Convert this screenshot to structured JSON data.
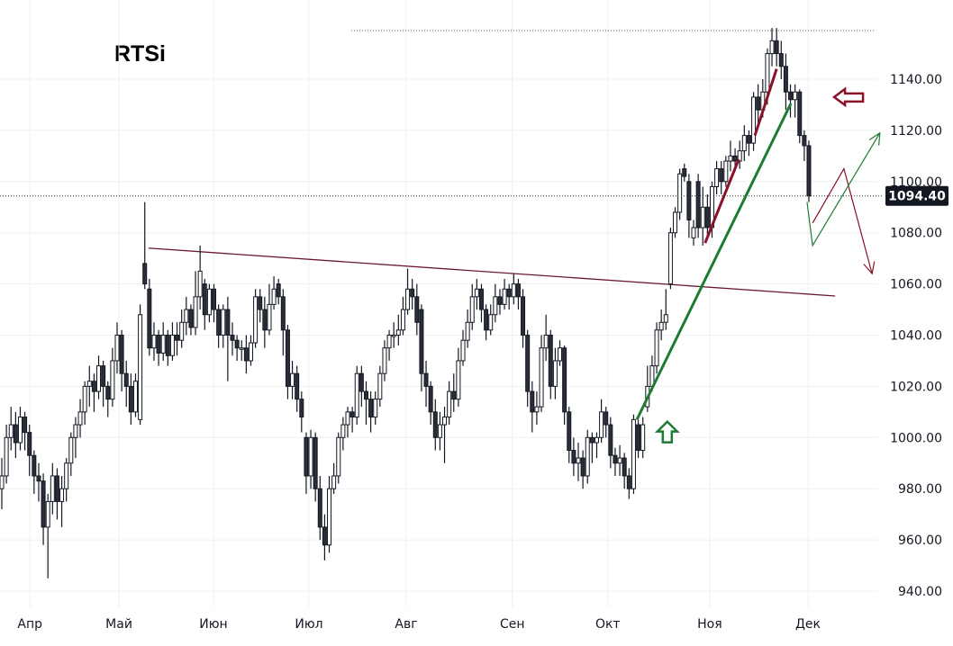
{
  "chart_data": {
    "type": "candlestick",
    "title": "RTSi",
    "ylim": [
      932,
      1162
    ],
    "yticks": [
      940,
      960,
      980,
      1000,
      1020,
      1040,
      1060,
      1080,
      1100,
      1120,
      1140
    ],
    "ytick_labels": [
      "940.00",
      "960.00",
      "980.00",
      "1000.00",
      "1020.00",
      "1040.00",
      "1060.00",
      "1080.00",
      "1100.00",
      "1120.00",
      "1140.00"
    ],
    "xticks": [
      {
        "label": "Апр",
        "index": 6.1
      },
      {
        "label": "Май",
        "index": 25.4
      },
      {
        "label": "Июн",
        "index": 45.9
      },
      {
        "label": "Июл",
        "index": 66.6
      },
      {
        "label": "Авг",
        "index": 87.7
      },
      {
        "label": "Сен",
        "index": 110.7
      },
      {
        "label": "Окт",
        "index": 131.4
      },
      {
        "label": "Ноя",
        "index": 153.5
      },
      {
        "label": "Дек",
        "index": 174.8
      }
    ],
    "grid": true,
    "last_price": 1094.4,
    "last_price_label": "1094.40",
    "colors": {
      "up_body": "#ffffff",
      "down_body": "#2a2e39",
      "wick": "#131722",
      "resistance": "#6b1a2e",
      "trend_green": "#1e7b34",
      "trend_red": "#8b1028",
      "grid": "#eef0f3"
    },
    "ohlc": [
      [
        980,
        992,
        972,
        985
      ],
      [
        985,
        1005,
        982,
        1000
      ],
      [
        1000,
        1012,
        995,
        1005
      ],
      [
        1005,
        1010,
        992,
        998
      ],
      [
        998,
        1012,
        995,
        1008
      ],
      [
        1008,
        1010,
        995,
        1002
      ],
      [
        1002,
        1005,
        985,
        993
      ],
      [
        993,
        995,
        978,
        985
      ],
      [
        985,
        990,
        975,
        983
      ],
      [
        983,
        986,
        958,
        965
      ],
      [
        965,
        978,
        945,
        975
      ],
      [
        975,
        990,
        970,
        985
      ],
      [
        985,
        988,
        968,
        975
      ],
      [
        975,
        985,
        965,
        980
      ],
      [
        980,
        992,
        975,
        990
      ],
      [
        990,
        1002,
        985,
        1000
      ],
      [
        1000,
        1008,
        992,
        1005
      ],
      [
        1005,
        1015,
        1000,
        1010
      ],
      [
        1010,
        1022,
        1005,
        1020
      ],
      [
        1020,
        1028,
        1012,
        1022
      ],
      [
        1022,
        1025,
        1010,
        1018
      ],
      [
        1018,
        1032,
        1015,
        1028
      ],
      [
        1028,
        1030,
        1012,
        1020
      ],
      [
        1020,
        1022,
        1008,
        1015
      ],
      [
        1015,
        1035,
        1012,
        1030
      ],
      [
        1030,
        1045,
        1025,
        1040
      ],
      [
        1040,
        1042,
        1018,
        1025
      ],
      [
        1025,
        1030,
        1012,
        1020
      ],
      [
        1020,
        1025,
        1005,
        1010
      ],
      [
        1010,
        1025,
        1008,
        1022
      ],
      [
        1007,
        1052,
        1005,
        1048
      ],
      [
        1068,
        1092,
        1058,
        1060
      ],
      [
        1058,
        1062,
        1032,
        1035
      ],
      [
        1035,
        1045,
        1030,
        1040
      ],
      [
        1040,
        1042,
        1028,
        1033
      ],
      [
        1033,
        1045,
        1030,
        1040
      ],
      [
        1040,
        1042,
        1028,
        1032
      ],
      [
        1032,
        1045,
        1030,
        1040
      ],
      [
        1040,
        1045,
        1032,
        1038
      ],
      [
        1038,
        1050,
        1035,
        1045
      ],
      [
        1045,
        1055,
        1040,
        1050
      ],
      [
        1050,
        1052,
        1040,
        1043
      ],
      [
        1043,
        1065,
        1040,
        1055
      ],
      [
        1055,
        1075,
        1050,
        1065
      ],
      [
        1060,
        1062,
        1042,
        1048
      ],
      [
        1048,
        1060,
        1045,
        1058
      ],
      [
        1058,
        1060,
        1045,
        1050
      ],
      [
        1050,
        1052,
        1035,
        1040
      ],
      [
        1040,
        1052,
        1035,
        1050
      ],
      [
        1050,
        1055,
        1022,
        1040
      ],
      [
        1040,
        1045,
        1032,
        1038
      ],
      [
        1038,
        1040,
        1030,
        1035
      ],
      [
        1035,
        1038,
        1030,
        1035
      ],
      [
        1035,
        1040,
        1025,
        1030
      ],
      [
        1030,
        1040,
        1028,
        1037
      ],
      [
        1037,
        1058,
        1035,
        1055
      ],
      [
        1055,
        1058,
        1045,
        1050
      ],
      [
        1050,
        1055,
        1035,
        1042
      ],
      [
        1042,
        1060,
        1040,
        1052
      ],
      [
        1052,
        1063,
        1050,
        1058
      ],
      [
        1060,
        1062,
        1052,
        1055
      ],
      [
        1055,
        1058,
        1032,
        1042
      ],
      [
        1042,
        1044,
        1015,
        1020
      ],
      [
        1020,
        1030,
        1015,
        1025
      ],
      [
        1025,
        1028,
        1010,
        1015
      ],
      [
        1015,
        1018,
        1002,
        1008
      ],
      [
        1000,
        1002,
        978,
        985
      ],
      [
        985,
        1003,
        980,
        1000
      ],
      [
        1000,
        1002,
        975,
        980
      ],
      [
        980,
        985,
        960,
        965
      ],
      [
        965,
        970,
        952,
        958
      ],
      [
        958,
        985,
        955,
        980
      ],
      [
        980,
        990,
        978,
        985
      ],
      [
        985,
        1002,
        982,
        1000
      ],
      [
        1000,
        1008,
        995,
        1005
      ],
      [
        1005,
        1012,
        1000,
        1010
      ],
      [
        1010,
        1012,
        1002,
        1008
      ],
      [
        1008,
        1028,
        1005,
        1025
      ],
      [
        1025,
        1028,
        1012,
        1018
      ],
      [
        1018,
        1022,
        1005,
        1015
      ],
      [
        1015,
        1018,
        1002,
        1008
      ],
      [
        1008,
        1018,
        1005,
        1015
      ],
      [
        1015,
        1028,
        1012,
        1025
      ],
      [
        1025,
        1038,
        1022,
        1035
      ],
      [
        1035,
        1042,
        1030,
        1040
      ],
      [
        1040,
        1045,
        1035,
        1040
      ],
      [
        1040,
        1048,
        1036,
        1042
      ],
      [
        1042,
        1055,
        1040,
        1050
      ],
      [
        1050,
        1066,
        1048,
        1058
      ],
      [
        1058,
        1062,
        1050,
        1055
      ],
      [
        1055,
        1060,
        1040,
        1045
      ],
      [
        1050,
        1052,
        1018,
        1025
      ],
      [
        1025,
        1030,
        1012,
        1020
      ],
      [
        1020,
        1022,
        1005,
        1010
      ],
      [
        1010,
        1015,
        995,
        1000
      ],
      [
        1000,
        1010,
        995,
        1005
      ],
      [
        1005,
        1012,
        990,
        1008
      ],
      [
        1008,
        1022,
        1005,
        1018
      ],
      [
        1018,
        1025,
        1010,
        1015
      ],
      [
        1015,
        1035,
        1012,
        1030
      ],
      [
        1030,
        1042,
        1028,
        1038
      ],
      [
        1038,
        1050,
        1035,
        1045
      ],
      [
        1045,
        1060,
        1042,
        1055
      ],
      [
        1055,
        1062,
        1050,
        1058
      ],
      [
        1058,
        1060,
        1045,
        1050
      ],
      [
        1050,
        1052,
        1038,
        1042
      ],
      [
        1042,
        1052,
        1040,
        1048
      ],
      [
        1048,
        1060,
        1045,
        1055
      ],
      [
        1055,
        1058,
        1048,
        1052
      ],
      [
        1052,
        1062,
        1050,
        1058
      ],
      [
        1058,
        1060,
        1050,
        1055
      ],
      [
        1055,
        1064,
        1052,
        1060
      ],
      [
        1060,
        1062,
        1050,
        1055
      ],
      [
        1055,
        1058,
        1035,
        1040
      ],
      [
        1040,
        1042,
        1012,
        1018
      ],
      [
        1018,
        1022,
        1002,
        1010
      ],
      [
        1010,
        1018,
        1005,
        1012
      ],
      [
        1012,
        1040,
        1010,
        1035
      ],
      [
        1035,
        1048,
        1030,
        1040
      ],
      [
        1040,
        1042,
        1015,
        1020
      ],
      [
        1020,
        1035,
        1015,
        1030
      ],
      [
        1030,
        1038,
        1028,
        1035
      ],
      [
        1035,
        1036,
        1005,
        1010
      ],
      [
        1010,
        1012,
        990,
        995
      ],
      [
        995,
        1000,
        985,
        990
      ],
      [
        990,
        998,
        983,
        992
      ],
      [
        992,
        995,
        980,
        985
      ],
      [
        985,
        1003,
        982,
        1000
      ],
      [
        1000,
        1002,
        990,
        998
      ],
      [
        998,
        1002,
        992,
        1000
      ],
      [
        1000,
        1015,
        998,
        1010
      ],
      [
        1010,
        1012,
        1000,
        1005
      ],
      [
        1005,
        1008,
        988,
        993
      ],
      [
        993,
        996,
        985,
        990
      ],
      [
        990,
        997,
        985,
        992
      ],
      [
        992,
        994,
        980,
        985
      ],
      [
        985,
        988,
        976,
        980
      ],
      [
        980,
        1009,
        978,
        1007
      ],
      [
        1005,
        1007,
        992,
        995
      ],
      [
        995,
        1008,
        992,
        1005
      ],
      [
        1012,
        1028,
        1010,
        1020
      ],
      [
        1020,
        1032,
        1018,
        1028
      ],
      [
        1028,
        1045,
        1025,
        1042
      ],
      [
        1042,
        1050,
        1038,
        1045
      ],
      [
        1045,
        1058,
        1042,
        1048
      ],
      [
        1060,
        1082,
        1058,
        1080
      ],
      [
        1080,
        1090,
        1078,
        1088
      ],
      [
        1088,
        1105,
        1085,
        1103
      ],
      [
        1105,
        1107,
        1100,
        1102
      ],
      [
        1100,
        1103,
        1078,
        1085
      ],
      [
        1078,
        1085,
        1075,
        1082
      ],
      [
        1100,
        1103,
        1078,
        1082
      ],
      [
        1082,
        1098,
        1075,
        1090
      ],
      [
        1090,
        1095,
        1078,
        1082
      ],
      [
        1082,
        1100,
        1078,
        1098
      ],
      [
        1098,
        1108,
        1095,
        1105
      ],
      [
        1105,
        1108,
        1095,
        1100
      ],
      [
        1100,
        1110,
        1098,
        1108
      ],
      [
        1108,
        1116,
        1104,
        1110
      ],
      [
        1110,
        1113,
        1104,
        1108
      ],
      [
        1108,
        1116,
        1105,
        1112
      ],
      [
        1112,
        1122,
        1108,
        1118
      ],
      [
        1118,
        1120,
        1110,
        1115
      ],
      [
        1115,
        1135,
        1112,
        1133
      ],
      [
        1133,
        1138,
        1122,
        1128
      ],
      [
        1128,
        1140,
        1125,
        1135
      ],
      [
        1135,
        1152,
        1130,
        1150
      ],
      [
        1150,
        1160,
        1145,
        1155
      ],
      [
        1155,
        1160,
        1145,
        1150
      ],
      [
        1150,
        1155,
        1140,
        1145
      ],
      [
        1145,
        1150,
        1128,
        1135
      ],
      [
        1135,
        1138,
        1125,
        1132
      ],
      [
        1132,
        1138,
        1125,
        1135
      ],
      [
        1135,
        1136,
        1115,
        1118
      ],
      [
        1118,
        1120,
        1108,
        1114
      ],
      [
        1114,
        1116,
        1092,
        1094.4
      ]
    ],
    "annotations": {
      "resistance_line": [
        [
          31.8,
          1074
        ],
        [
          180.7,
          1055.3
        ]
      ],
      "high_dotted_line": [
        [
          75.8,
          1159
        ],
        [
          189.5,
          1159
        ]
      ],
      "green_trendline": [
        [
          137.7,
          1007
        ],
        [
          171.1,
          1130.5
        ]
      ],
      "red_segments": [
        [
          [
            152.5,
            1076
          ],
          [
            159.8,
            1108.7
          ]
        ],
        [
          [
            163.3,
            1118
          ],
          [
            168,
            1144
          ]
        ]
      ],
      "green_up_arrow": [
        144.3,
        1002
      ],
      "red_left_arrow": [
        184,
        1133
      ],
      "red_projection": [
        [
          175.8,
          1083.8
        ],
        [
          182.6,
          1105
        ],
        [
          188.7,
          1064
        ]
      ],
      "green_projection": [
        [
          174.6,
          1092
        ],
        [
          175.8,
          1075
        ],
        [
          190.4,
          1119
        ]
      ]
    }
  }
}
